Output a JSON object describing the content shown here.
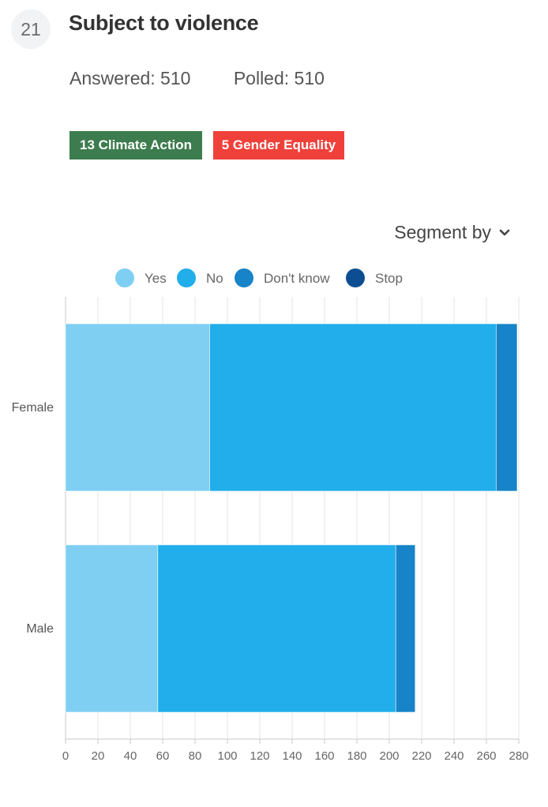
{
  "question": {
    "number": "21",
    "title": "Subject to violence",
    "answered": "Answered: 510",
    "polled": "Polled: 510"
  },
  "tags": [
    {
      "label": "13 Climate Action",
      "color": "#3d7c4e"
    },
    {
      "label": "5 Gender Equality",
      "color": "#f0403a"
    }
  ],
  "segment_by": {
    "label": "Segment by",
    "icon": "chevron-down-icon"
  },
  "chart_data": {
    "type": "bar",
    "orientation": "horizontal",
    "stacked": true,
    "categories": [
      "Female",
      "Male"
    ],
    "series": [
      {
        "name": "Yes",
        "color": "#7fcff3",
        "values": [
          89,
          57
        ]
      },
      {
        "name": "No",
        "color": "#21aeea",
        "values": [
          177,
          147
        ]
      },
      {
        "name": "Don't know",
        "color": "#1783c8",
        "values": [
          13,
          12
        ]
      },
      {
        "name": "Stop",
        "color": "#0d4e92",
        "values": [
          0,
          0
        ]
      }
    ],
    "xlim": [
      0,
      280
    ],
    "xticks": [
      0,
      20,
      40,
      60,
      80,
      100,
      120,
      140,
      160,
      180,
      200,
      220,
      240,
      260,
      280
    ],
    "grid": true,
    "legend": "top-center"
  }
}
